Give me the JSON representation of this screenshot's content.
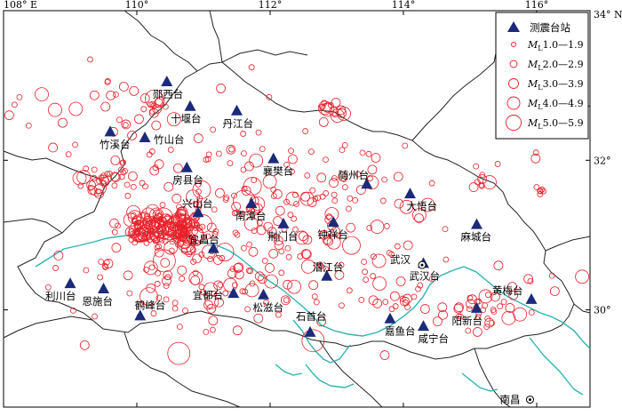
{
  "map": {
    "extent": {
      "lon_min": 108.0,
      "lon_max": 116.8,
      "lat_min": 28.7,
      "lat_max": 34.0
    },
    "axis_ticks_lon": [
      {
        "lon": 108,
        "label": "108° E"
      },
      {
        "lon": 110,
        "label": "110°"
      },
      {
        "lon": 112,
        "label": "112°"
      },
      {
        "lon": 114,
        "label": "114°"
      },
      {
        "lon": 116,
        "label": "116°"
      }
    ],
    "axis_ticks_lat": [
      {
        "lat": 34,
        "label": "34° N"
      },
      {
        "lat": 32,
        "label": "32°"
      },
      {
        "lat": 30,
        "label": "30°"
      }
    ],
    "colors": {
      "quake": "#e8202a",
      "station": "#1c2a7a",
      "river": "#2fb3b3",
      "border": "#222222"
    }
  },
  "legend": {
    "station_label": "测震台站",
    "magnitude_items": [
      {
        "prefix": "M",
        "sub": "L",
        "range": "1.0—1.9"
      },
      {
        "prefix": "M",
        "sub": "L",
        "range": "2.0—2.9"
      },
      {
        "prefix": "M",
        "sub": "L",
        "range": "3.0—3.9"
      },
      {
        "prefix": "M",
        "sub": "L",
        "range": "4.0—4.9"
      },
      {
        "prefix": "M",
        "sub": "L",
        "range": "5.0—5.9"
      }
    ]
  },
  "stations": [
    {
      "name": "郧西台",
      "lon": 110.45,
      "lat": 33.05,
      "label_dx": -16,
      "label_dy": 18
    },
    {
      "name": "十堰台",
      "lon": 110.8,
      "lat": 32.72,
      "label_dx": -22,
      "label_dy": 18
    },
    {
      "name": "丹江台",
      "lon": 111.5,
      "lat": 32.66,
      "label_dx": -16,
      "label_dy": 18
    },
    {
      "name": "竹溪台",
      "lon": 109.6,
      "lat": 32.38,
      "label_dx": -12,
      "label_dy": 18
    },
    {
      "name": "竹山台",
      "lon": 110.12,
      "lat": 32.3,
      "label_dx": 10,
      "label_dy": 6
    },
    {
      "name": "襄樊台",
      "lon": 112.05,
      "lat": 32.02,
      "label_dx": -12,
      "label_dy": 18
    },
    {
      "name": "房县台",
      "lon": 110.75,
      "lat": 31.9,
      "label_dx": -16,
      "label_dy": 18
    },
    {
      "name": "随州台",
      "lon": 113.45,
      "lat": 31.68,
      "label_dx": -32,
      "label_dy": -6
    },
    {
      "name": "大悟台",
      "lon": 114.1,
      "lat": 31.55,
      "label_dx": -4,
      "label_dy": 18
    },
    {
      "name": "兴山台",
      "lon": 110.92,
      "lat": 31.3,
      "label_dx": -18,
      "label_dy": -6
    },
    {
      "name": "南漳台",
      "lon": 111.72,
      "lat": 31.42,
      "label_dx": -18,
      "label_dy": 18
    },
    {
      "name": "钟祥台",
      "lon": 112.95,
      "lat": 31.17,
      "label_dx": -18,
      "label_dy": 18
    },
    {
      "name": "麻城台",
      "lon": 115.1,
      "lat": 31.14,
      "label_dx": -18,
      "label_dy": 18
    },
    {
      "name": "荆门台",
      "lon": 112.2,
      "lat": 31.15,
      "label_dx": -18,
      "label_dy": 18
    },
    {
      "name": "宜昌台",
      "lon": 111.15,
      "lat": 30.82,
      "label_dx": -28,
      "label_dy": -6
    },
    {
      "name": "潜江台",
      "lon": 112.85,
      "lat": 30.45,
      "label_dx": -16,
      "label_dy": -6
    },
    {
      "name": "武汉台",
      "lon": 114.3,
      "lat": 30.62,
      "label_dx": -16,
      "label_dy": 18
    },
    {
      "name": "利川台",
      "lon": 109.0,
      "lat": 30.35,
      "label_dx": -28,
      "label_dy": 18
    },
    {
      "name": "恩施台",
      "lon": 109.5,
      "lat": 30.28,
      "label_dx": -24,
      "label_dy": 18
    },
    {
      "name": "宜都台",
      "lon": 111.45,
      "lat": 30.22,
      "label_dx": -46,
      "label_dy": 6
    },
    {
      "name": "松滋台",
      "lon": 111.9,
      "lat": 30.2,
      "label_dx": -12,
      "label_dy": 18
    },
    {
      "name": "鹤峰台",
      "lon": 110.05,
      "lat": 29.92,
      "label_dx": -6,
      "label_dy": -8
    },
    {
      "name": "黄梅台",
      "lon": 115.92,
      "lat": 30.14,
      "label_dx": -44,
      "label_dy": -6
    },
    {
      "name": "阳新台",
      "lon": 115.1,
      "lat": 30.02,
      "label_dx": -28,
      "label_dy": 18
    },
    {
      "name": "石首台",
      "lon": 112.6,
      "lat": 29.7,
      "label_dx": -16,
      "label_dy": -14
    },
    {
      "name": "嘉鱼台",
      "lon": 113.8,
      "lat": 29.88,
      "label_dx": -6,
      "label_dy": 18
    },
    {
      "name": "咸宁台",
      "lon": 114.3,
      "lat": 29.78,
      "label_dx": -6,
      "label_dy": 18
    }
  ],
  "cities": [
    {
      "name": "武汉",
      "lon": 114.28,
      "lat": 30.6,
      "label_dx": -36,
      "label_dy": -2
    },
    {
      "name": "南昌",
      "lon": 115.9,
      "lat": 28.8,
      "label_dx": -34,
      "label_dy": 4
    }
  ]
}
